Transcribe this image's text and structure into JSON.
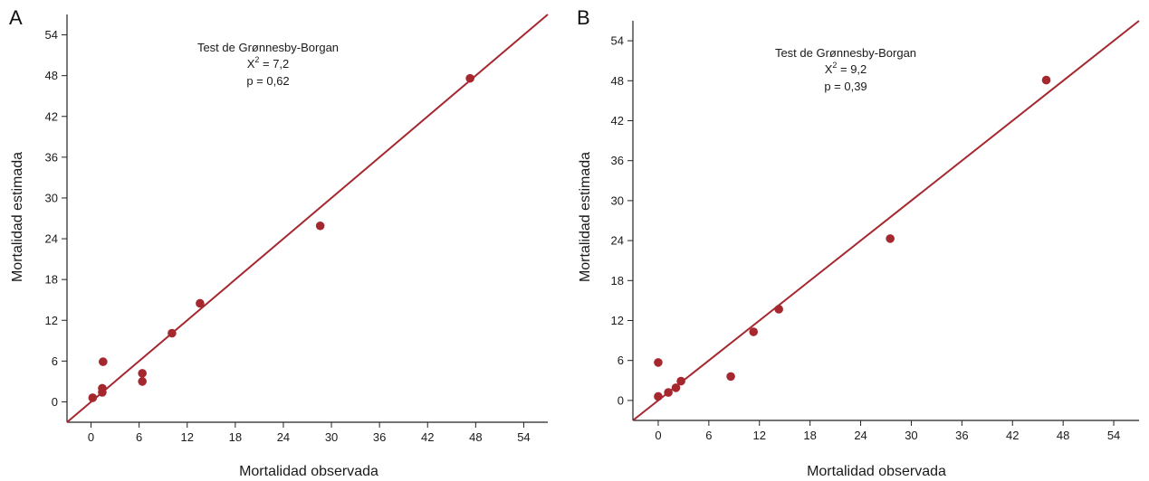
{
  "chart_data": [
    {
      "type": "scatter",
      "panel_label": "A",
      "xlabel": "Mortalidad observada",
      "ylabel": "Mortalidad estimada",
      "xlim": [
        -3,
        57
      ],
      "ylim": [
        -3,
        57
      ],
      "xticks": [
        0,
        6,
        12,
        18,
        24,
        30,
        36,
        42,
        48,
        54
      ],
      "yticks": [
        0,
        6,
        12,
        18,
        24,
        30,
        36,
        42,
        48,
        54
      ],
      "xtick_labels": [
        "0",
        "6",
        "12",
        "18",
        "24",
        "30",
        "36",
        "42",
        "48",
        "54"
      ],
      "ytick_labels": [
        "0",
        "6",
        "12",
        "18",
        "24",
        "30",
        "36",
        "42",
        "48",
        "54"
      ],
      "grid": false,
      "reference_line": "identity",
      "annotation": {
        "title": "Test de Grønnesby-Borgan",
        "chi_label": "X",
        "chi_sup": "2",
        "chi_value": " = 7,2",
        "p_line": "p = 0,62"
      },
      "points": [
        {
          "x": 0.2,
          "y": 0.6
        },
        {
          "x": 1.4,
          "y": 1.4
        },
        {
          "x": 1.4,
          "y": 2.0
        },
        {
          "x": 1.5,
          "y": 5.9
        },
        {
          "x": 6.4,
          "y": 3.0
        },
        {
          "x": 6.4,
          "y": 4.2
        },
        {
          "x": 10.1,
          "y": 10.1
        },
        {
          "x": 13.6,
          "y": 14.5
        },
        {
          "x": 28.6,
          "y": 25.9
        },
        {
          "x": 47.3,
          "y": 47.6
        }
      ]
    },
    {
      "type": "scatter",
      "panel_label": "B",
      "xlabel": "Mortalidad observada",
      "ylabel": "Mortalidad estimada",
      "xlim": [
        -3,
        57
      ],
      "ylim": [
        -3,
        57
      ],
      "xticks": [
        0,
        6,
        12,
        18,
        24,
        30,
        36,
        42,
        48,
        54
      ],
      "yticks": [
        0,
        6,
        12,
        18,
        24,
        30,
        36,
        42,
        48,
        54
      ],
      "xtick_labels": [
        "0",
        "6",
        "12",
        "18",
        "24",
        "30",
        "36",
        "42",
        "48",
        "54"
      ],
      "ytick_labels": [
        "0",
        "6",
        "12",
        "18",
        "24",
        "30",
        "36",
        "42",
        "48",
        "54"
      ],
      "grid": false,
      "reference_line": "identity",
      "annotation": {
        "title": "Test de Grønnesby-Borgan",
        "chi_label": "X",
        "chi_sup": "2",
        "chi_value": " = 9,2",
        "p_line": "p = 0,39"
      },
      "points": [
        {
          "x": 0.0,
          "y": 5.7
        },
        {
          "x": 0.0,
          "y": 0.6
        },
        {
          "x": 1.2,
          "y": 1.2
        },
        {
          "x": 2.1,
          "y": 1.9
        },
        {
          "x": 2.7,
          "y": 2.9
        },
        {
          "x": 8.6,
          "y": 3.6
        },
        {
          "x": 11.3,
          "y": 10.3
        },
        {
          "x": 14.3,
          "y": 13.7
        },
        {
          "x": 27.5,
          "y": 24.3
        },
        {
          "x": 46.0,
          "y": 48.1
        }
      ]
    }
  ],
  "style": {
    "marker_color": "#a5282f",
    "line_color": "#a5282f",
    "axis_color": "#222222"
  }
}
